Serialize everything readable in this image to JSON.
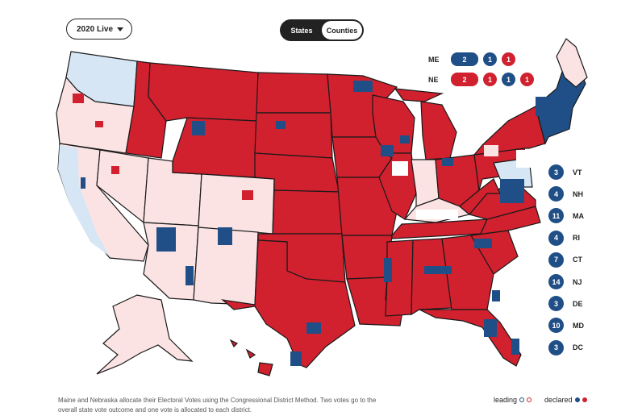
{
  "controls": {
    "year_label": "2020 Live",
    "view_options": [
      "States",
      "Counties"
    ],
    "active_view": "Counties"
  },
  "split_states": [
    {
      "state": "ME",
      "statewide": "2",
      "districts": [
        "1",
        "1"
      ],
      "colors": [
        "blue",
        "blue",
        "red"
      ]
    },
    {
      "state": "NE",
      "statewide": "2",
      "districts": [
        "1",
        "1",
        "1"
      ],
      "colors": [
        "red",
        "red",
        "blue",
        "red"
      ]
    }
  ],
  "small_states": [
    {
      "votes": "3",
      "abbr": "VT"
    },
    {
      "votes": "4",
      "abbr": "NH"
    },
    {
      "votes": "11",
      "abbr": "MA"
    },
    {
      "votes": "4",
      "abbr": "RI"
    },
    {
      "votes": "7",
      "abbr": "CT"
    },
    {
      "votes": "14",
      "abbr": "NJ"
    },
    {
      "votes": "3",
      "abbr": "DE"
    },
    {
      "votes": "10",
      "abbr": "MD"
    },
    {
      "votes": "3",
      "abbr": "DC"
    }
  ],
  "footnote": "Maine and Nebraska allocate their Electoral Votes using the Congressional District Method. Two votes go to the overall state vote outcome and one vote is allocated to each district.",
  "legend": {
    "leading": "leading",
    "declared": "declared"
  },
  "colors": {
    "dem_declared": "#1f4f86",
    "rep_declared": "#d1202e",
    "dem_leading": "#d6e6f5",
    "rep_leading": "#fbe3e4",
    "border": "#1a1a1a"
  }
}
